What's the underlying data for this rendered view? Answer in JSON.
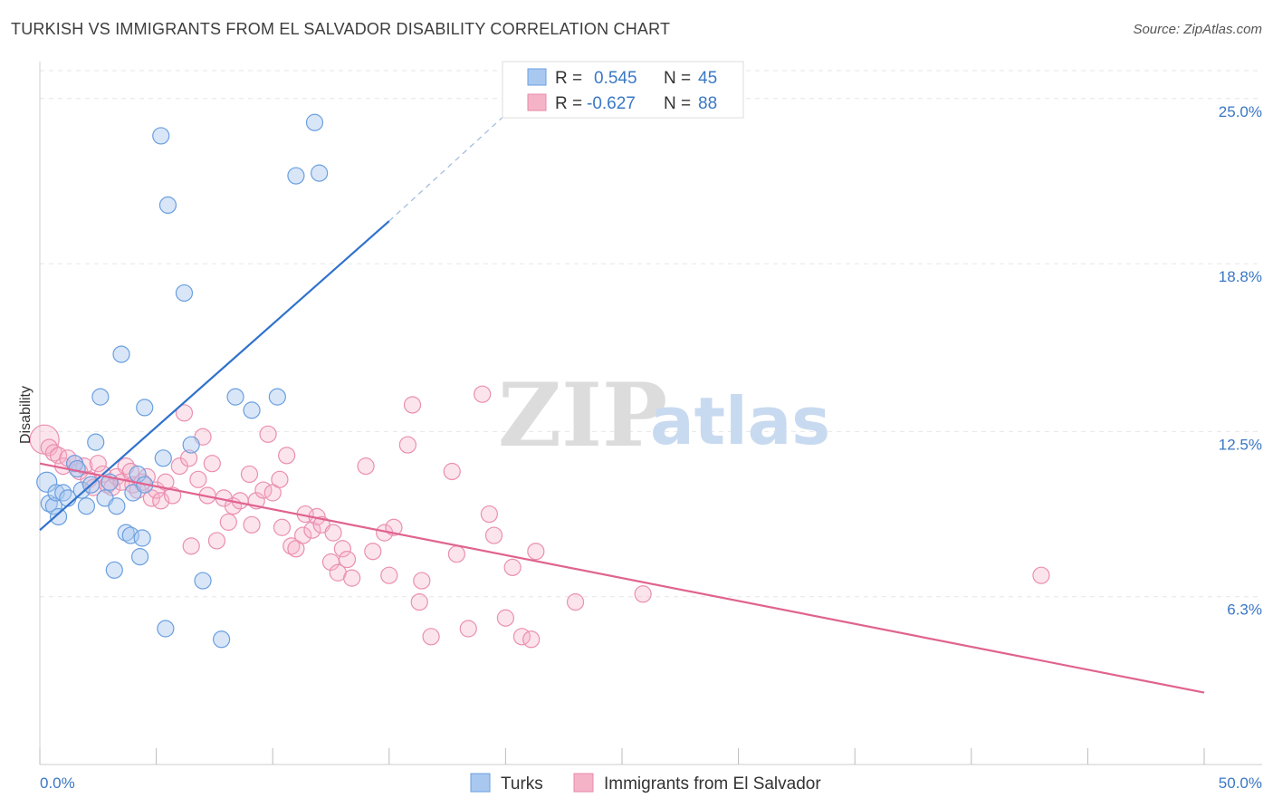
{
  "title": "TURKISH VS IMMIGRANTS FROM EL SALVADOR DISABILITY CORRELATION CHART",
  "source": "Source: ZipAtlas.com",
  "watermark": {
    "zip": "ZIP",
    "atlas": "atlas"
  },
  "colors": {
    "turks": "#a9c8f0",
    "turks_line": "#2f72cc",
    "salvador": "#f5b3c8",
    "salvador_line": "#e0638f",
    "tick": "#3a78c4"
  },
  "legend": {
    "rows": [
      {
        "r_label": "R =",
        "r_value": "0.545",
        "n_label": "N =",
        "n_value": "45"
      },
      {
        "r_label": "R =",
        "r_value": "-0.627",
        "n_label": "N =",
        "n_value": "88"
      }
    ]
  },
  "bottom_legend": [
    "Turks",
    "Immigrants from El Salvador"
  ],
  "chart_data": {
    "type": "scatter",
    "ylabel": "Disability",
    "xlim": [
      0,
      50
    ],
    "ylim": [
      0,
      26.25
    ],
    "yticks": [
      {
        "value": 6.3,
        "label": "6.3%"
      },
      {
        "value": 12.5,
        "label": "12.5%"
      },
      {
        "value": 18.8,
        "label": "18.8%"
      },
      {
        "value": 25.0,
        "label": "25.0%"
      }
    ],
    "xtick_labels": {
      "min": "0.0%",
      "max": "50.0%"
    },
    "xtick_values": [
      0,
      5,
      10,
      15,
      20,
      25,
      30,
      35,
      40,
      45,
      50
    ],
    "series": [
      {
        "name": "Turks",
        "trend": {
          "x": [
            0,
            15
          ],
          "y": [
            8.8,
            20.4
          ],
          "dash_to": [
            20.5,
            24.8
          ]
        },
        "points": [
          [
            0.3,
            10.6,
            11
          ],
          [
            0.4,
            9.8,
            9
          ],
          [
            0.6,
            9.7,
            9
          ],
          [
            0.7,
            10.2,
            9
          ],
          [
            0.8,
            9.3,
            9
          ],
          [
            1.0,
            10.2,
            9
          ],
          [
            1.2,
            10.0,
            9
          ],
          [
            1.5,
            11.3,
            9
          ],
          [
            1.6,
            11.1,
            9
          ],
          [
            1.8,
            10.3,
            9
          ],
          [
            2.0,
            9.7,
            9
          ],
          [
            2.2,
            10.5,
            9
          ],
          [
            2.4,
            12.1,
            9
          ],
          [
            2.6,
            13.8,
            9
          ],
          [
            2.8,
            10.0,
            9
          ],
          [
            3.0,
            10.6,
            9
          ],
          [
            3.2,
            7.3,
            9
          ],
          [
            3.3,
            9.7,
            9
          ],
          [
            3.5,
            15.4,
            9
          ],
          [
            3.7,
            8.7,
            9
          ],
          [
            3.9,
            8.6,
            9
          ],
          [
            4.0,
            10.2,
            9
          ],
          [
            4.2,
            10.9,
            9
          ],
          [
            4.3,
            7.8,
            9
          ],
          [
            4.4,
            8.5,
            9
          ],
          [
            4.5,
            10.5,
            9
          ],
          [
            4.5,
            13.4,
            9
          ],
          [
            5.2,
            23.6,
            9
          ],
          [
            5.3,
            11.5,
            9
          ],
          [
            5.4,
            5.1,
            9
          ],
          [
            5.5,
            21.0,
            9
          ],
          [
            6.2,
            17.7,
            9
          ],
          [
            6.5,
            12.0,
            9
          ],
          [
            7.0,
            6.9,
            9
          ],
          [
            7.8,
            4.7,
            9
          ],
          [
            8.4,
            13.8,
            9
          ],
          [
            9.1,
            13.3,
            9
          ],
          [
            10.2,
            13.8,
            9
          ],
          [
            11.0,
            22.1,
            9
          ],
          [
            11.8,
            24.1,
            9
          ],
          [
            12.0,
            22.2,
            9
          ]
        ]
      },
      {
        "name": "Immigrants from El Salvador",
        "trend": {
          "x": [
            0,
            50
          ],
          "y": [
            11.3,
            2.7
          ]
        },
        "points": [
          [
            0.2,
            12.2,
            16
          ],
          [
            0.4,
            11.9,
            9
          ],
          [
            0.6,
            11.7,
            9
          ],
          [
            0.8,
            11.6,
            9
          ],
          [
            1.0,
            11.2,
            9
          ],
          [
            1.2,
            11.5,
            9
          ],
          [
            1.5,
            11.3,
            9
          ],
          [
            1.7,
            11.0,
            9
          ],
          [
            1.9,
            11.2,
            9
          ],
          [
            2.1,
            10.7,
            9
          ],
          [
            2.3,
            10.4,
            9
          ],
          [
            2.5,
            11.3,
            9
          ],
          [
            2.7,
            10.9,
            9
          ],
          [
            2.9,
            10.5,
            9
          ],
          [
            3.1,
            10.4,
            9
          ],
          [
            3.3,
            10.8,
            9
          ],
          [
            3.5,
            10.6,
            9
          ],
          [
            3.7,
            11.2,
            9
          ],
          [
            3.9,
            11.0,
            9
          ],
          [
            4.0,
            10.5,
            9
          ],
          [
            4.2,
            10.3,
            9
          ],
          [
            4.4,
            10.6,
            9
          ],
          [
            4.6,
            10.8,
            9
          ],
          [
            4.8,
            10.0,
            9
          ],
          [
            5.0,
            10.3,
            9
          ],
          [
            5.2,
            9.9,
            9
          ],
          [
            5.4,
            10.6,
            9
          ],
          [
            5.7,
            10.1,
            9
          ],
          [
            6.0,
            11.2,
            9
          ],
          [
            6.2,
            13.2,
            9
          ],
          [
            6.4,
            11.5,
            9
          ],
          [
            6.5,
            8.2,
            9
          ],
          [
            6.8,
            10.7,
            9
          ],
          [
            7.0,
            12.3,
            9
          ],
          [
            7.2,
            10.1,
            9
          ],
          [
            7.4,
            11.3,
            9
          ],
          [
            7.6,
            8.4,
            9
          ],
          [
            7.9,
            10.0,
            9
          ],
          [
            8.1,
            9.1,
            9
          ],
          [
            8.3,
            9.7,
            9
          ],
          [
            8.6,
            9.9,
            9
          ],
          [
            9.0,
            10.9,
            9
          ],
          [
            9.1,
            9.0,
            9
          ],
          [
            9.3,
            9.9,
            9
          ],
          [
            9.6,
            10.3,
            9
          ],
          [
            9.8,
            12.4,
            9
          ],
          [
            10.0,
            10.2,
            9
          ],
          [
            10.3,
            10.7,
            9
          ],
          [
            10.4,
            8.9,
            9
          ],
          [
            10.6,
            11.6,
            9
          ],
          [
            10.8,
            8.2,
            9
          ],
          [
            11.0,
            8.1,
            9
          ],
          [
            11.3,
            8.6,
            9
          ],
          [
            11.4,
            9.4,
            9
          ],
          [
            11.7,
            8.8,
            9
          ],
          [
            11.9,
            9.3,
            9
          ],
          [
            12.1,
            9.0,
            9
          ],
          [
            12.5,
            7.6,
            9
          ],
          [
            12.6,
            8.7,
            9
          ],
          [
            12.8,
            7.2,
            9
          ],
          [
            13.0,
            8.1,
            9
          ],
          [
            13.2,
            7.7,
            9
          ],
          [
            13.4,
            7.0,
            9
          ],
          [
            14.0,
            11.2,
            9
          ],
          [
            14.3,
            8.0,
            9
          ],
          [
            14.8,
            8.7,
            9
          ],
          [
            15.0,
            7.1,
            9
          ],
          [
            15.2,
            8.9,
            9
          ],
          [
            15.8,
            12.0,
            9
          ],
          [
            16.0,
            13.5,
            9
          ],
          [
            16.4,
            6.9,
            9
          ],
          [
            16.3,
            6.1,
            9
          ],
          [
            16.8,
            4.8,
            9
          ],
          [
            17.7,
            11.0,
            9
          ],
          [
            17.9,
            7.9,
            9
          ],
          [
            18.4,
            5.1,
            9
          ],
          [
            19.0,
            13.9,
            9
          ],
          [
            19.3,
            9.4,
            9
          ],
          [
            19.5,
            8.6,
            9
          ],
          [
            20.0,
            5.5,
            9
          ],
          [
            20.3,
            7.4,
            9
          ],
          [
            20.7,
            4.8,
            9
          ],
          [
            21.1,
            4.7,
            9
          ],
          [
            21.3,
            8.0,
            9
          ],
          [
            23.0,
            6.1,
            9
          ],
          [
            25.9,
            6.4,
            9
          ],
          [
            43.0,
            7.1,
            9
          ]
        ]
      }
    ]
  }
}
